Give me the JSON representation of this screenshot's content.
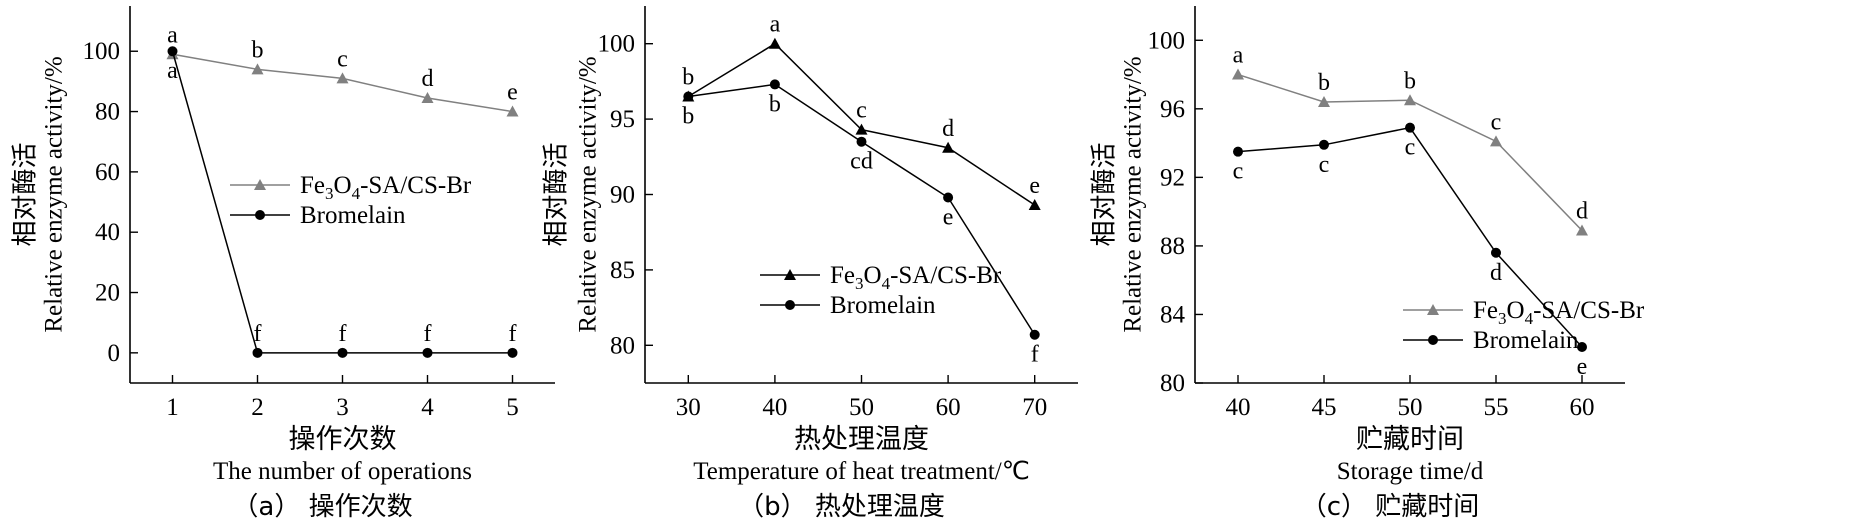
{
  "chart_data": [
    {
      "type": "line",
      "panel_caption": "（a） 操作次数",
      "xlabel_cn": "操作次数",
      "xlabel_en": "The number of operations",
      "ylabel_cn": "相对酶活",
      "ylabel_en": "Relative enzyme activity/%",
      "x": [
        1,
        2,
        3,
        4,
        5
      ],
      "xlim": [
        0.5,
        5.5
      ],
      "ylim": [
        -10,
        115
      ],
      "yticks": [
        0,
        20,
        40,
        60,
        80,
        100
      ],
      "legend_position": "center-right",
      "series": [
        {
          "name": "Fe3O4-SA/CS-Br",
          "label_base": "Fe",
          "label_parts": [
            "3",
            "O",
            "4",
            "-SA/CS-Br"
          ],
          "marker": "triangle",
          "color": "#808080",
          "values": [
            99,
            94,
            91,
            84.5,
            80
          ],
          "letters": [
            "a",
            "b",
            "c",
            "d",
            "e"
          ],
          "letter_pos": [
            "above",
            "above",
            "above",
            "above",
            "above"
          ]
        },
        {
          "name": "Bromelain",
          "marker": "circle",
          "color": "#000000",
          "values": [
            100,
            0,
            0,
            0,
            0
          ],
          "letters": [
            "a",
            "f",
            "f",
            "f",
            "f"
          ],
          "letter_pos": [
            "below",
            "above",
            "above",
            "above",
            "above"
          ]
        }
      ]
    },
    {
      "type": "line",
      "panel_caption": "（b） 热处理温度",
      "xlabel_cn": "热处理温度",
      "xlabel_en": "Temperature of heat treatment/℃",
      "ylabel_cn": "相对酶活",
      "ylabel_en": "Relative enzyme activity/%",
      "x": [
        30,
        40,
        50,
        60,
        70
      ],
      "xlim": [
        25,
        75
      ],
      "ylim": [
        77.5,
        102.5
      ],
      "yticks": [
        80,
        85,
        90,
        95,
        100
      ],
      "legend_position": "bottom-left",
      "series": [
        {
          "name": "Fe3O4-SA/CS-Br",
          "marker": "triangle",
          "color": "#000000",
          "values": [
            96.5,
            100,
            94.3,
            93.1,
            89.3
          ],
          "letters": [
            "b",
            "a",
            "c",
            "d",
            "e"
          ],
          "letter_pos": [
            "above",
            "above",
            "above",
            "above",
            "above"
          ]
        },
        {
          "name": "Bromelain",
          "marker": "circle",
          "color": "#000000",
          "values": [
            96.5,
            97.3,
            93.5,
            89.8,
            80.7
          ],
          "letters": [
            "b",
            "b",
            "cd",
            "e",
            "f"
          ],
          "letter_pos": [
            "below",
            "below",
            "below",
            "below",
            "below"
          ]
        }
      ]
    },
    {
      "type": "line",
      "panel_caption": "（c） 贮藏时间",
      "xlabel_cn": "贮藏时间",
      "xlabel_en": "Storage time/d",
      "ylabel_cn": "相对酶活",
      "ylabel_en": "Relative enzyme activity/%",
      "x": [
        40,
        45,
        50,
        55,
        60
      ],
      "xlim": [
        37.5,
        62.5
      ],
      "ylim": [
        80,
        102
      ],
      "yticks": [
        80,
        84,
        88,
        92,
        96,
        100
      ],
      "legend_position": "bottom-left",
      "series": [
        {
          "name": "Fe3O4-SA/CS-Br",
          "marker": "triangle",
          "color": "#808080",
          "values": [
            98,
            96.4,
            96.5,
            94.1,
            88.9
          ],
          "letters": [
            "a",
            "b",
            "b",
            "c",
            "d"
          ],
          "letter_pos": [
            "above",
            "above",
            "above",
            "above",
            "above"
          ]
        },
        {
          "name": "Bromelain",
          "marker": "circle",
          "color": "#000000",
          "values": [
            93.5,
            93.9,
            94.9,
            87.6,
            82.1
          ],
          "letters": [
            "c",
            "c",
            "c",
            "d",
            "e"
          ],
          "letter_pos": [
            "below",
            "below",
            "below",
            "below",
            "below"
          ]
        }
      ]
    }
  ]
}
